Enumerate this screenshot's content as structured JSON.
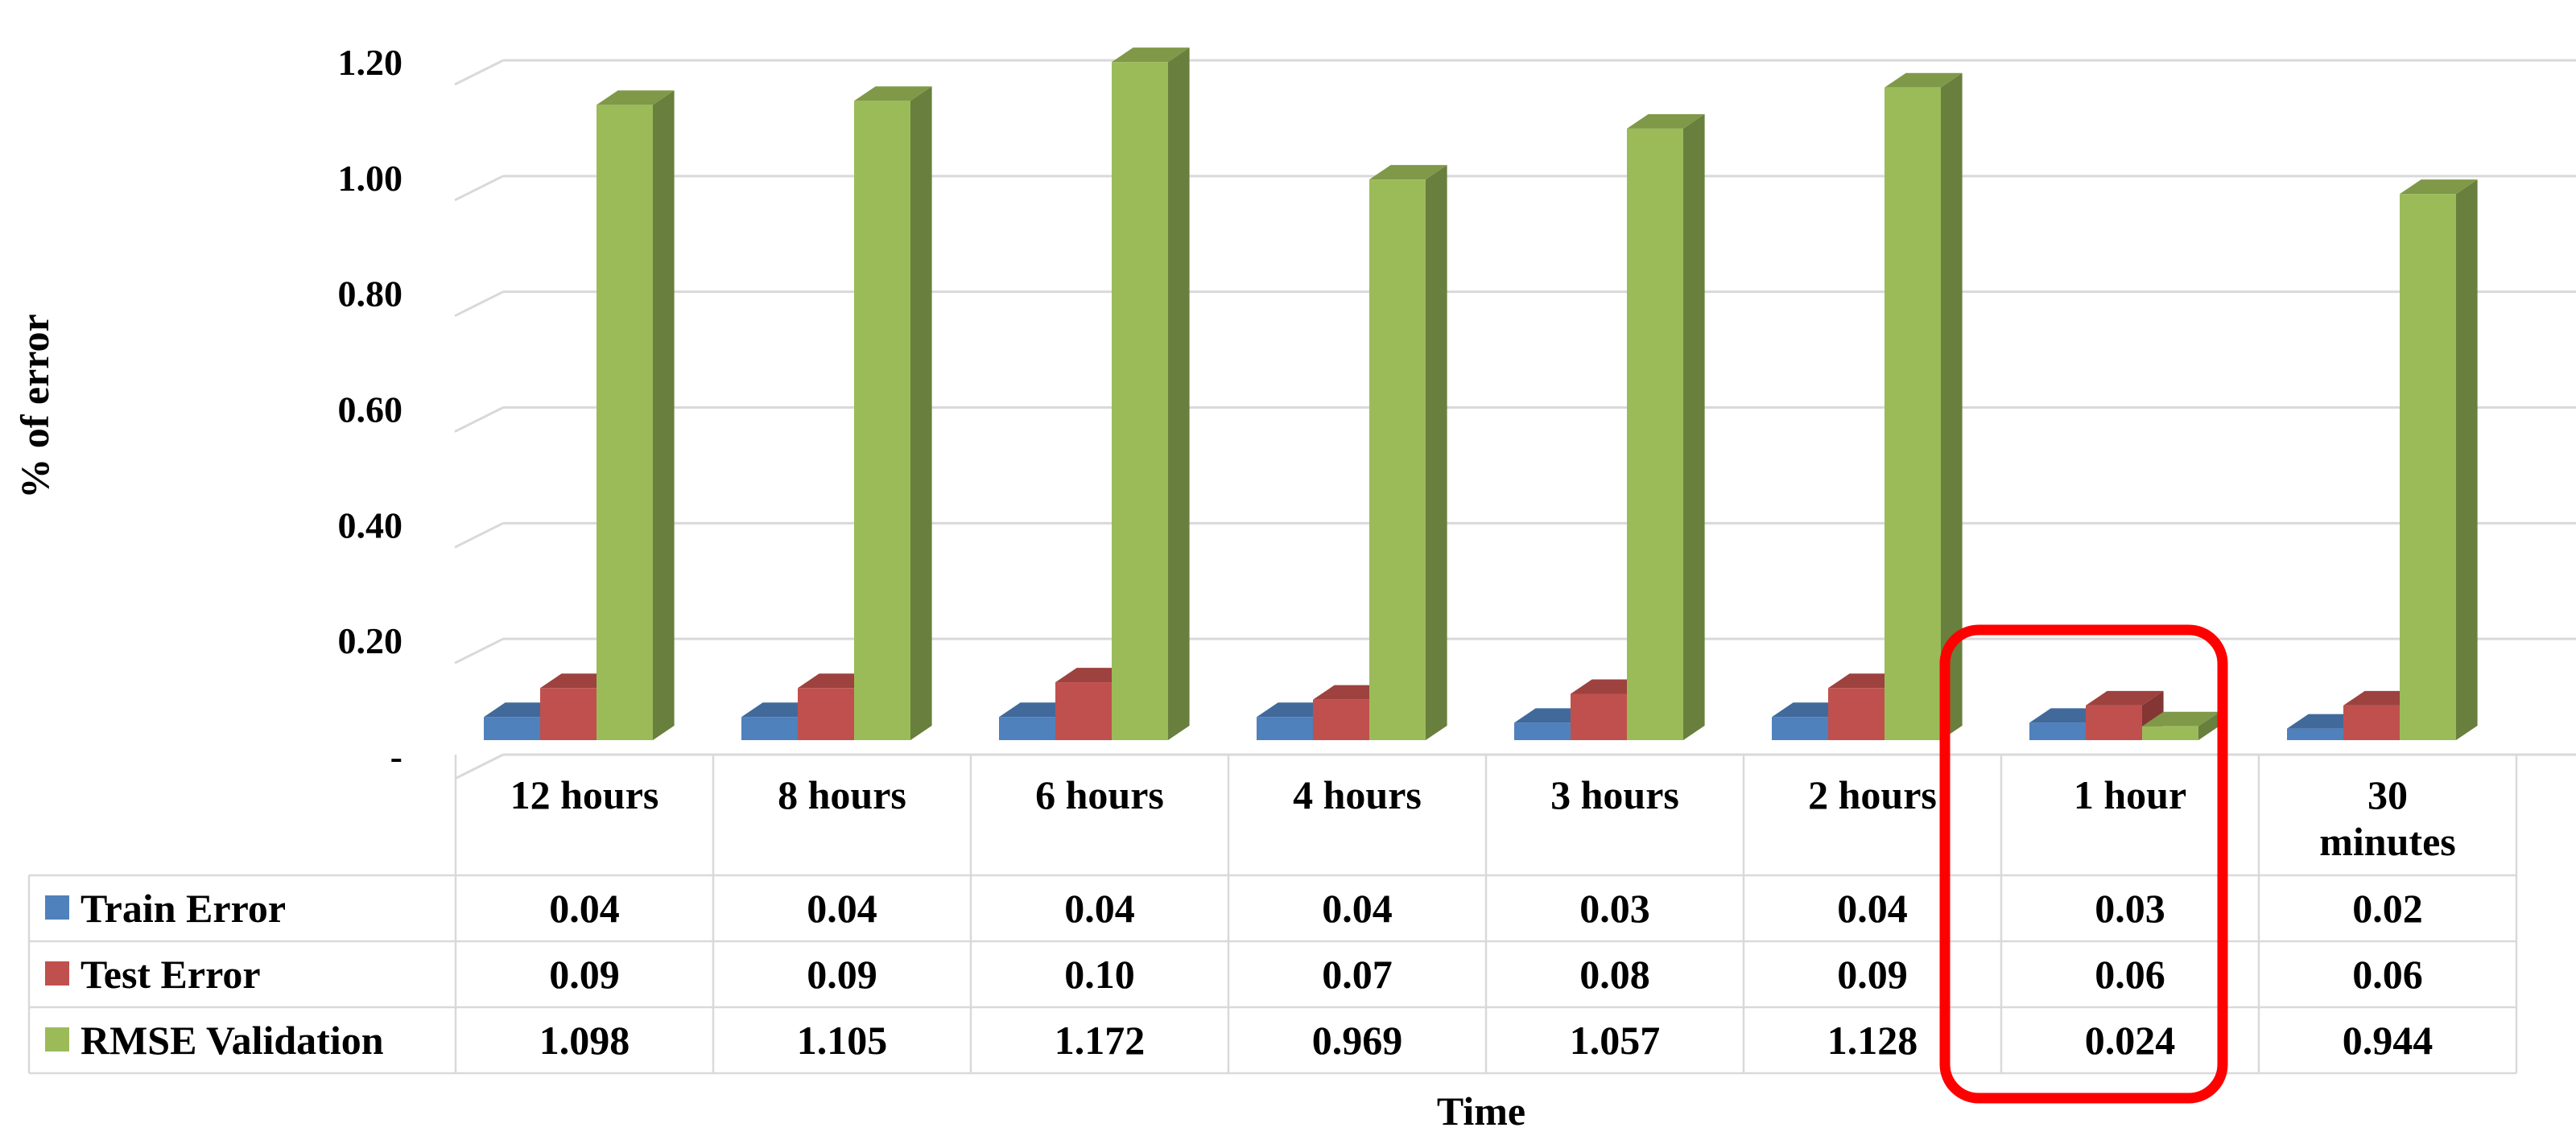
{
  "chart_data": {
    "type": "bar",
    "title": "",
    "xlabel": "Time",
    "ylabel": "% of error",
    "ylim": [
      0,
      1.2
    ],
    "y_ticks": [
      "-",
      "0.20",
      "0.40",
      "0.60",
      "0.80",
      "1.00",
      "1.20"
    ],
    "categories": [
      "12 hours",
      "8 hours",
      "6 hours",
      "4 hours",
      "3 hours",
      "2 hours",
      "1 hour",
      "30 minutes"
    ],
    "series": [
      {
        "name": "Train Error",
        "color": "#4f81bd",
        "values": [
          0.04,
          0.04,
          0.04,
          0.04,
          0.03,
          0.04,
          0.03,
          0.02
        ],
        "labels": [
          "0.04",
          "0.04",
          "0.04",
          "0.04",
          "0.03",
          "0.04",
          "0.03",
          "0.02"
        ]
      },
      {
        "name": "Test Error",
        "color": "#c0504d",
        "values": [
          0.09,
          0.09,
          0.1,
          0.07,
          0.08,
          0.09,
          0.06,
          0.06
        ],
        "labels": [
          "0.09",
          "0.09",
          "0.10",
          "0.07",
          "0.08",
          "0.09",
          "0.06",
          "0.06"
        ]
      },
      {
        "name": "RMSE Validation",
        "color": "#9bbb59",
        "values": [
          1.098,
          1.105,
          1.172,
          0.969,
          1.057,
          1.128,
          0.024,
          0.944
        ],
        "labels": [
          "1.098",
          "1.105",
          "1.172",
          "0.969",
          "1.057",
          "1.128",
          "0.024",
          "0.944"
        ]
      }
    ],
    "grid": true,
    "legend": "data-table",
    "data_table": true,
    "highlight": {
      "category": "1 hour",
      "color": "#ff0000"
    }
  }
}
